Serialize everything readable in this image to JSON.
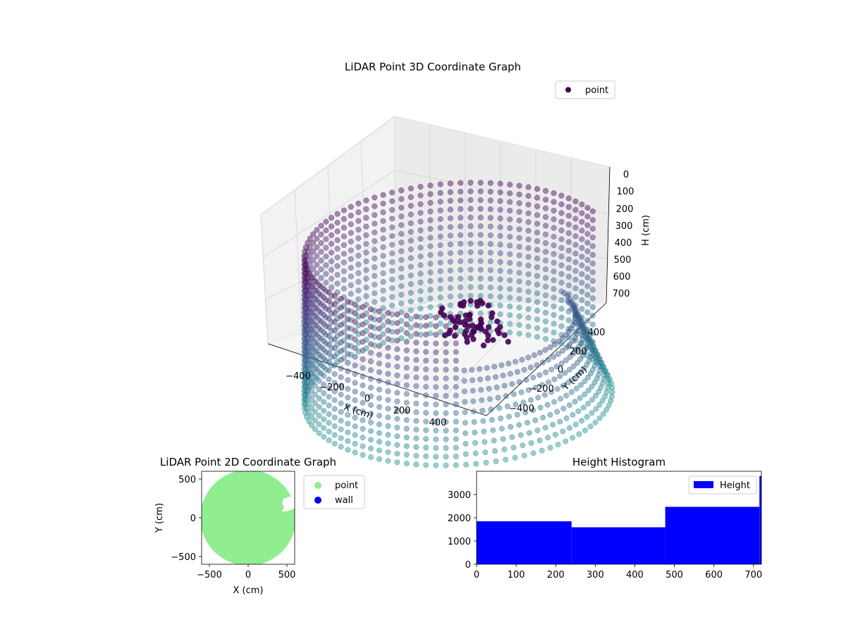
{
  "chart_data": [
    {
      "type": "scatter",
      "projection": "3d",
      "title": "LiDAR Point 3D Coordinate Graph",
      "xlabel": "X (cm)",
      "ylabel": "Y (cm)",
      "zlabel": "H (cm)",
      "xticks": [
        "−400",
        "−200",
        "0",
        "200",
        "400"
      ],
      "yticks": [
        "−400",
        "−200",
        "0",
        "200",
        "400"
      ],
      "zticks": [
        "0",
        "100",
        "200",
        "300",
        "400",
        "500",
        "600",
        "700"
      ],
      "xlim": [
        -600,
        600
      ],
      "ylim": [
        -600,
        600
      ],
      "zlim": [
        0,
        720
      ],
      "z_axis_inverted": true,
      "grid": true,
      "legend": [
        "point"
      ],
      "legend_position": "upper-right",
      "colormap": "viridis",
      "shape": {
        "form": "cylindrical wall of points",
        "radius": 560,
        "height_range": [
          0,
          720
        ],
        "opening_angle_deg": [
          -60,
          60
        ]
      },
      "cluster": {
        "center_x": 150,
        "center_y": -150,
        "height_range": [
          150,
          330
        ]
      }
    },
    {
      "type": "scatter",
      "title": "LiDAR Point 2D Coordinate Graph",
      "xlabel": "X (cm)",
      "ylabel": "Y (cm)",
      "xticks": [
        "−500",
        "0",
        "500"
      ],
      "yticks": [
        "−500",
        "0",
        "500"
      ],
      "xlim": [
        -600,
        600
      ],
      "ylim": [
        -600,
        600
      ],
      "legend": [
        "point",
        "wall"
      ],
      "legend_position": "outside-right",
      "series_colors": {
        "point": "#90ee90",
        "wall": "#0000ff"
      }
    },
    {
      "type": "bar",
      "title": "Height Histogram",
      "legend": [
        "Height"
      ],
      "legend_position": "upper-right",
      "color": "#0000ff",
      "xticks": [
        "0",
        "100",
        "200",
        "300",
        "400",
        "500",
        "600",
        "700"
      ],
      "yticks": [
        "0",
        "1000",
        "2000",
        "3000"
      ],
      "xlim": [
        0,
        720
      ],
      "ylim": [
        0,
        4000
      ],
      "bins": [
        {
          "start": 0,
          "end": 240,
          "count": 1850
        },
        {
          "start": 240,
          "end": 477,
          "count": 1590
        },
        {
          "start": 477,
          "end": 715,
          "count": 2470
        },
        {
          "start": 715,
          "end": 720,
          "count": 3800
        }
      ]
    }
  ]
}
